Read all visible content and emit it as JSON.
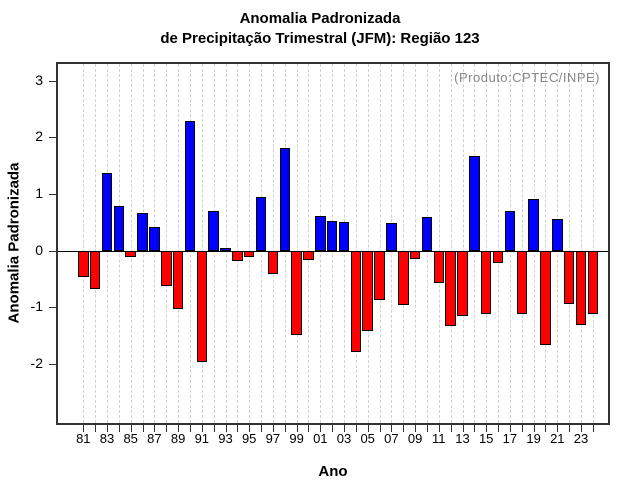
{
  "title": {
    "line1": "Anomalia Padronizada",
    "line2": "de Precipitação Trimestral (JFM): Região 123"
  },
  "annotation": "(Produto:CPTEC/INPE)",
  "axes": {
    "xlabel": "Ano",
    "ylabel": "Anomalia Padronizada"
  },
  "colors": {
    "positive": "#0000ff",
    "negative": "#ff0000",
    "bar_border": "#000000",
    "gridline": "#cfcfcf",
    "frame": "#333333",
    "annotation_text": "#878787"
  },
  "chart_data": {
    "type": "bar",
    "title": "Anomalia Padronizada de Precipitação Trimestral (JFM): Região 123",
    "xlabel": "Ano",
    "ylabel": "Anomalia Padronizada",
    "ylim": [
      -3.05,
      3.3
    ],
    "yticks": [
      3,
      2,
      1,
      0,
      -1,
      -2
    ],
    "xtick_labels": [
      "81",
      "83",
      "85",
      "87",
      "89",
      "91",
      "93",
      "95",
      "97",
      "99",
      "01",
      "03",
      "05",
      "07",
      "09",
      "11",
      "13",
      "15",
      "17",
      "19",
      "21",
      "23"
    ],
    "grid": "vertical-dashed",
    "legend": "none",
    "annotation": "(Produto:CPTEC/INPE)",
    "categories": [
      1981,
      1982,
      1983,
      1984,
      1985,
      1986,
      1987,
      1988,
      1989,
      1990,
      1991,
      1992,
      1993,
      1994,
      1995,
      1996,
      1997,
      1998,
      1999,
      2000,
      2001,
      2002,
      2003,
      2004,
      2005,
      2006,
      2007,
      2008,
      2009,
      2010,
      2011,
      2012,
      2013,
      2014,
      2015,
      2016,
      2017,
      2018,
      2019,
      2020,
      2021,
      2022,
      2023,
      2024
    ],
    "values": [
      -0.46,
      -0.68,
      1.38,
      0.79,
      -0.12,
      0.66,
      0.42,
      -0.63,
      -1.04,
      2.3,
      -1.97,
      0.7,
      0.04,
      -0.18,
      -0.11,
      0.94,
      -0.42,
      1.82,
      -1.5,
      -0.17,
      0.61,
      0.53,
      0.51,
      -1.79,
      -1.43,
      -0.87,
      0.48,
      -0.97,
      -0.15,
      0.59,
      -0.57,
      -1.34,
      -1.16,
      1.67,
      -1.12,
      -0.22,
      0.7,
      -1.12,
      0.92,
      -1.67,
      0.56,
      -0.94,
      -1.31,
      -1.12
    ]
  }
}
